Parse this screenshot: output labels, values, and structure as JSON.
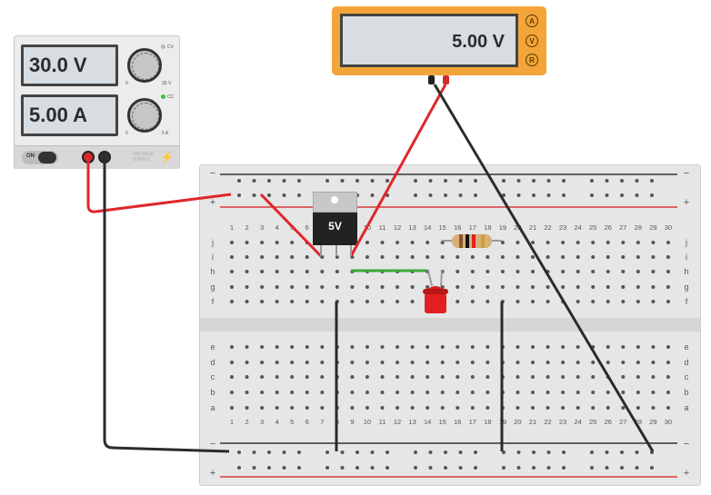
{
  "power_supply": {
    "voltage_display": "30.0 V",
    "current_display": "5.00 A",
    "on_label": "ON",
    "knob_voltage_min": "0",
    "knob_voltage_max": "30 V",
    "knob_current_min": "0",
    "knob_current_max": "5 A",
    "indicator_cv": "CV",
    "indicator_cc": "CC",
    "brand_lines": [
      "VOLTAGE",
      "SUPPLY"
    ]
  },
  "multimeter": {
    "reading": "5.00 V",
    "mode_buttons": [
      "A",
      "V",
      "R"
    ]
  },
  "breadboard": {
    "column_numbers": [
      "1",
      "2",
      "3",
      "4",
      "5",
      "6",
      "7",
      "8",
      "9",
      "10",
      "11",
      "12",
      "13",
      "14",
      "15",
      "16",
      "17",
      "18",
      "19",
      "20",
      "21",
      "22",
      "23",
      "24",
      "25",
      "26",
      "27",
      "28",
      "29",
      "30"
    ],
    "top_row_letters": [
      "j",
      "i",
      "h",
      "g",
      "f"
    ],
    "bottom_row_letters": [
      "e",
      "d",
      "c",
      "b",
      "a"
    ],
    "rail_minus": "−",
    "rail_plus": "+"
  },
  "regulator": {
    "label": "5V"
  },
  "colors": {
    "wire_red": "#e0262b",
    "wire_black": "#2b2b2b",
    "wire_green": "#39a839",
    "meter_orange": "#f4a53a",
    "display_bg": "#d7dde0",
    "rail_red": "#d93a3a"
  }
}
